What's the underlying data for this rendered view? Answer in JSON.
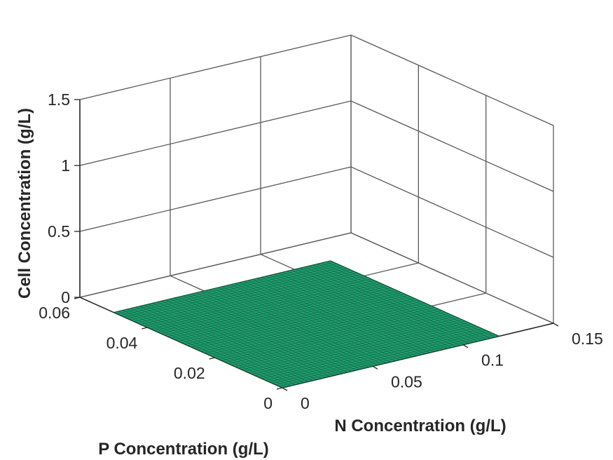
{
  "chart_data": {
    "type": "surface",
    "title": "",
    "xlabel": "N Concentration (g/L)",
    "ylabel": "P Concentration (g/L)",
    "zlabel": "Cell Concentration (g/L)",
    "x_ticks": [
      "0",
      "0.05",
      "0.1",
      "0.15"
    ],
    "y_ticks": [
      "0",
      "0.02",
      "0.04",
      "0.06"
    ],
    "z_ticks": [
      "0",
      "0.5",
      "1",
      "1.5"
    ],
    "xlim": [
      0,
      0.15
    ],
    "ylim": [
      0,
      0.06
    ],
    "zlim": [
      0,
      1.5
    ],
    "grid": true,
    "surface": {
      "x_range": [
        0,
        0.12
      ],
      "y_range": [
        0,
        0.05
      ],
      "z_value": 0,
      "grid_divisions": 50,
      "color": "#1f9e6e",
      "edge_color": "#0b3d2a"
    }
  }
}
